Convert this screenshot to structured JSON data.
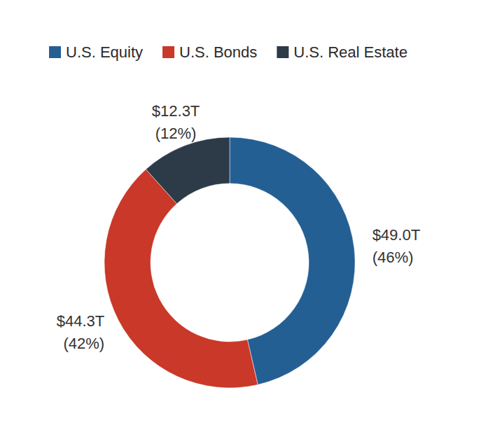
{
  "chart_data": {
    "type": "donut",
    "categories": [
      "U.S. Equity",
      "U.S. Bonds",
      "U.S. Real Estate"
    ],
    "values": [
      49.0,
      44.3,
      12.3
    ],
    "value_labels": [
      "$49.0T (46%)",
      "$44.3T (42%)",
      "$12.3T (12%)"
    ],
    "colors": [
      "#245f94",
      "#c93828",
      "#2d3a48"
    ],
    "legend": "top",
    "data_labels": true
  }
}
